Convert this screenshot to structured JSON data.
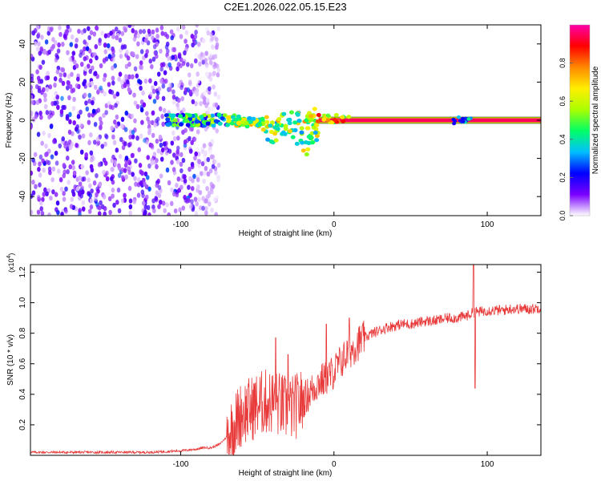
{
  "figure_title": "C2E1.2026.022.05.15.E23",
  "chart_data": [
    {
      "type": "heatmap",
      "title": "C2E1.2026.022.05.15.E23",
      "xlabel": "Height of straight line (km)",
      "ylabel": "Frequency (Hz)",
      "xlim": [
        -198,
        135
      ],
      "ylim": [
        -50,
        50
      ],
      "x_ticks": [
        -100,
        0,
        100
      ],
      "x_tick_labels": [
        "-100",
        "0",
        "100"
      ],
      "y_ticks": [
        -40,
        -20,
        0,
        20,
        40
      ],
      "y_tick_labels": [
        "-40",
        "-20",
        "0",
        "20",
        "40"
      ],
      "colorbar": {
        "label": "Normalized spectral amplitude",
        "range": [
          0,
          1
        ],
        "ticks": [
          0,
          0.2,
          0.4,
          0.6,
          0.8
        ],
        "tick_labels": [
          "0.0",
          "0.2",
          "0.4",
          "0.6",
          "0.8"
        ],
        "colors": [
          "#ffffff",
          "#7a00ff",
          "#0000ff",
          "#00bfff",
          "#00ff66",
          "#aaff00",
          "#ffee00",
          "#ff8800",
          "#ff0000",
          "#ff00aa"
        ]
      },
      "regions": [
        {
          "name": "diffuse_noise",
          "x": [
            -198,
            -75
          ],
          "freq": [
            -50,
            50
          ],
          "amplitude": 0.15
        },
        {
          "name": "streak_cluster",
          "x": [
            -110,
            -10
          ],
          "freq": [
            -22,
            8
          ],
          "amplitude": 0.45
        },
        {
          "name": "carrier_line",
          "x": [
            -20,
            135
          ],
          "freq": 0,
          "amplitude": 0.95
        },
        {
          "name": "carrier_echo",
          "x": [
            78,
            95
          ],
          "freq": [
            -2,
            2
          ],
          "amplitude": 0.35
        }
      ]
    },
    {
      "type": "line",
      "xlabel": "Height of straight line (km)",
      "ylabel": "SNR (10 * v/v)",
      "y_multiplier": "(x10",
      "y_multiplier_exp": "4",
      "y_multiplier_close": ")",
      "xlim": [
        -198,
        135
      ],
      "ylim": [
        0,
        1.25
      ],
      "x_ticks": [
        -100,
        0,
        100
      ],
      "x_tick_labels": [
        "-100",
        "0",
        "100"
      ],
      "y_ticks": [
        0.2,
        0.4,
        0.6,
        0.8,
        1.0,
        1.2
      ],
      "y_tick_labels": [
        "0.2",
        "0.4",
        "0.6",
        "0.8",
        "1.0",
        "1.2"
      ],
      "series": [
        {
          "name": "SNR",
          "color": "#e83a3a",
          "x": [
            -198,
            -180,
            -160,
            -140,
            -120,
            -100,
            -90,
            -85,
            -80,
            -75,
            -70,
            -65,
            -60,
            -55,
            -50,
            -45,
            -40,
            -35,
            -30,
            -25,
            -20,
            -15,
            -10,
            -5,
            0,
            5,
            10,
            15,
            20,
            25,
            30,
            35,
            40,
            45,
            50,
            55,
            60,
            65,
            70,
            75,
            80,
            85,
            88,
            90,
            92,
            95,
            100,
            105,
            110,
            115,
            120,
            125,
            130,
            135
          ],
          "y": [
            0.02,
            0.02,
            0.02,
            0.02,
            0.02,
            0.03,
            0.04,
            0.05,
            0.05,
            0.07,
            0.12,
            0.2,
            0.28,
            0.3,
            0.33,
            0.35,
            0.35,
            0.33,
            0.3,
            0.32,
            0.36,
            0.42,
            0.48,
            0.5,
            0.55,
            0.62,
            0.68,
            0.73,
            0.77,
            0.8,
            0.82,
            0.84,
            0.85,
            0.86,
            0.86,
            0.87,
            0.88,
            0.88,
            0.89,
            0.9,
            0.9,
            0.91,
            0.92,
            0.93,
            0.94,
            0.94,
            0.95,
            0.95,
            0.95,
            0.96,
            0.96,
            0.96,
            0.96,
            0.97
          ],
          "spikes": [
            {
              "x": -38,
              "y": 0.77
            },
            {
              "x": -30,
              "y": 0.66
            },
            {
              "x": -5,
              "y": 0.86
            },
            {
              "x": 10,
              "y": 0.9
            },
            {
              "x": 91,
              "y": 1.25
            },
            {
              "x": 92,
              "y": 0.44
            }
          ]
        }
      ]
    }
  ]
}
